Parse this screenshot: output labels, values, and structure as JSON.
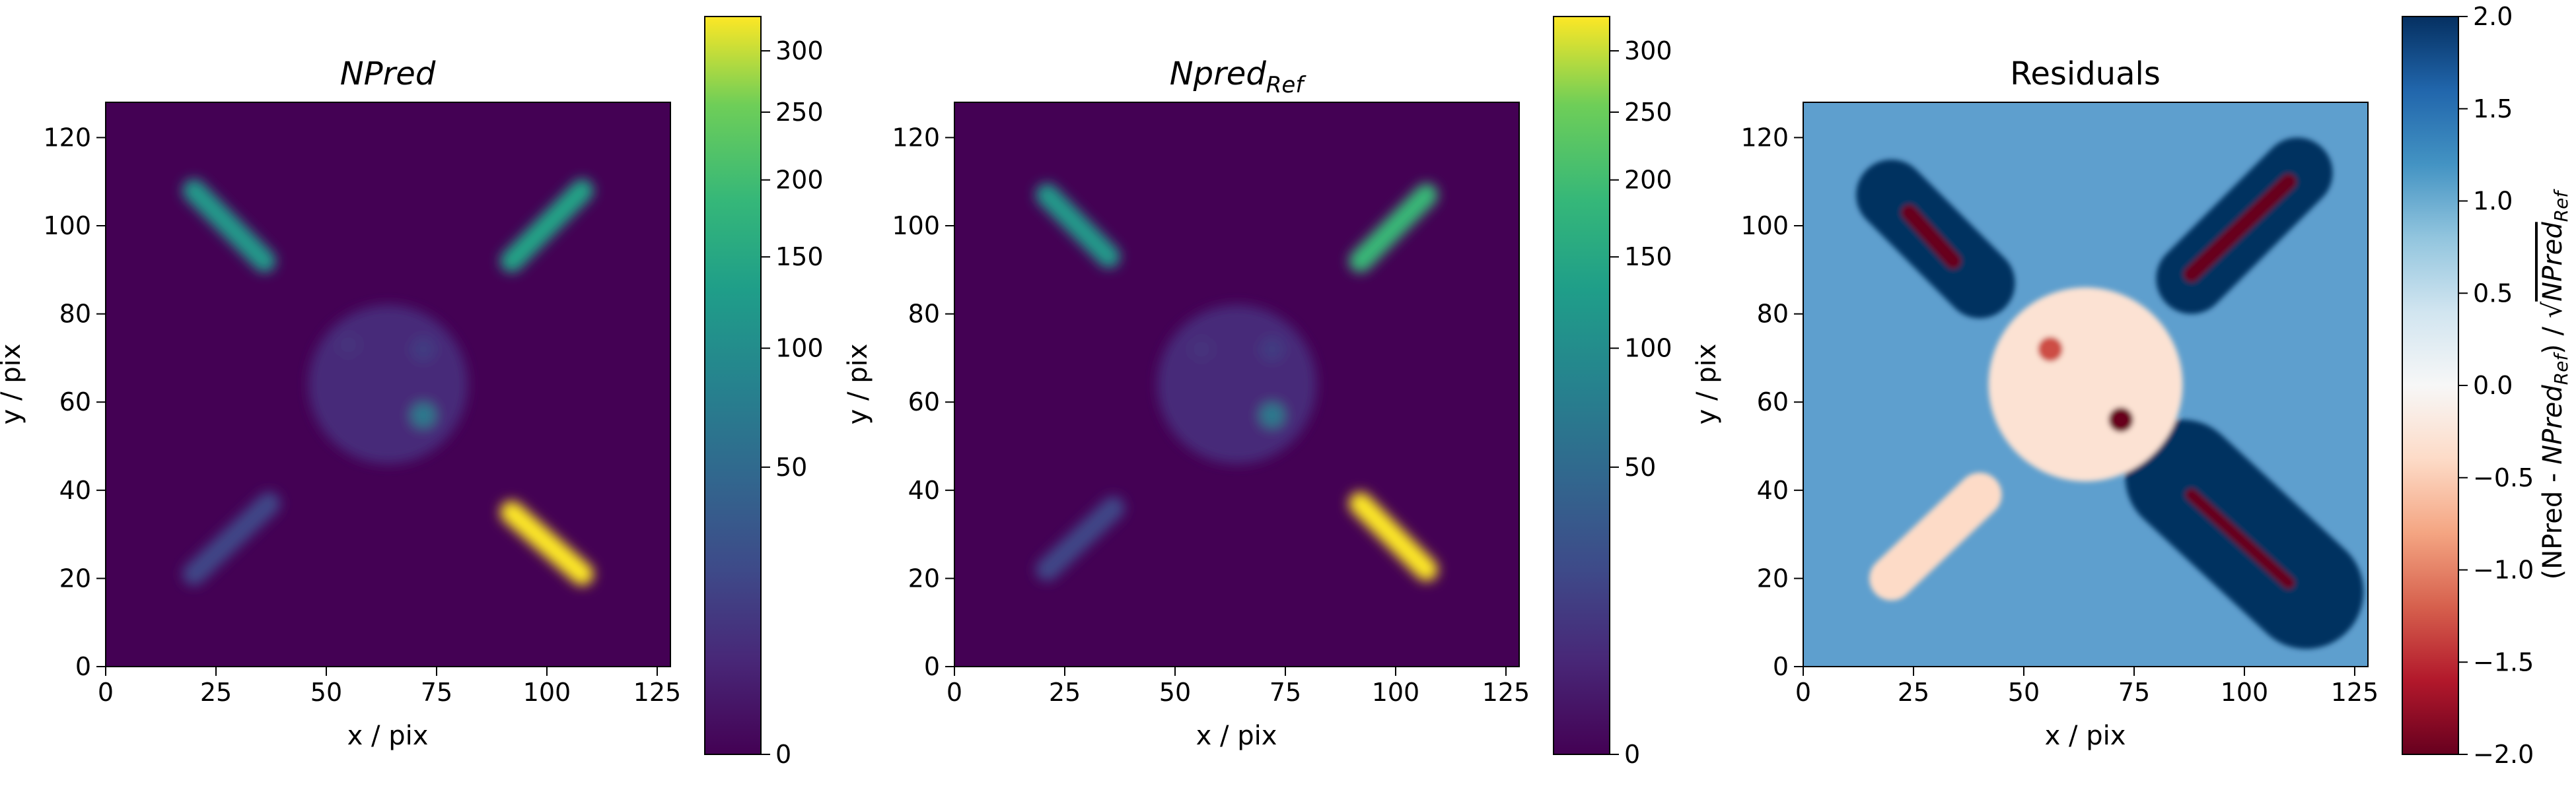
{
  "chart_data": [
    {
      "type": "heatmap",
      "title": "NPred",
      "title_style": "italic",
      "xlabel": "x / pix",
      "ylabel": "y / pix",
      "xlim": [
        0,
        128
      ],
      "ylim": [
        0,
        128
      ],
      "xticks": [
        "0",
        "25",
        "50",
        "75",
        "100",
        "125"
      ],
      "yticks": [
        "0",
        "20",
        "40",
        "60",
        "80",
        "100",
        "120"
      ],
      "colormap": "viridis",
      "colorbar": {
        "scale": "sqrt",
        "range": [
          0,
          330
        ],
        "ticks": [
          "0",
          "50",
          "100",
          "150",
          "200",
          "250",
          "300"
        ]
      },
      "features": [
        {
          "shape": "bar",
          "from": [
            20,
            108
          ],
          "to": [
            36,
            92
          ],
          "value": 120
        },
        {
          "shape": "bar",
          "from": [
            92,
            92
          ],
          "to": [
            108,
            108
          ],
          "value": 140
        },
        {
          "shape": "bar",
          "from": [
            20,
            21
          ],
          "to": [
            37,
            37
          ],
          "value": 18
        },
        {
          "shape": "bar",
          "from": [
            92,
            35
          ],
          "to": [
            108,
            21
          ],
          "value": 330
        },
        {
          "shape": "disk",
          "center": [
            64,
            64
          ],
          "radius": 18,
          "value": 6
        },
        {
          "shape": "spot",
          "center": [
            72,
            57
          ],
          "value": 70
        },
        {
          "shape": "spot",
          "center": [
            72,
            72
          ],
          "value": 12
        },
        {
          "shape": "spot",
          "center": [
            55,
            73
          ],
          "value": 8
        }
      ]
    },
    {
      "type": "heatmap",
      "title": "Npred",
      "title_subscript": "Ref",
      "title_style": "italic",
      "xlabel": "x / pix",
      "ylabel": "y / pix",
      "xlim": [
        0,
        128
      ],
      "ylim": [
        0,
        128
      ],
      "xticks": [
        "0",
        "25",
        "50",
        "75",
        "100",
        "125"
      ],
      "yticks": [
        "0",
        "20",
        "40",
        "60",
        "80",
        "100",
        "120"
      ],
      "colormap": "viridis",
      "colorbar": {
        "scale": "sqrt",
        "range": [
          0,
          330
        ],
        "ticks": [
          "0",
          "50",
          "100",
          "150",
          "200",
          "250",
          "300"
        ]
      },
      "features": [
        {
          "shape": "bar",
          "from": [
            21,
            107
          ],
          "to": [
            35,
            93
          ],
          "value": 120
        },
        {
          "shape": "bar",
          "from": [
            92,
            92
          ],
          "to": [
            107,
            107
          ],
          "value": 190
        },
        {
          "shape": "bar",
          "from": [
            21,
            22
          ],
          "to": [
            36,
            36
          ],
          "value": 18
        },
        {
          "shape": "bar",
          "from": [
            92,
            37
          ],
          "to": [
            107,
            22
          ],
          "value": 330
        },
        {
          "shape": "disk",
          "center": [
            64,
            64
          ],
          "radius": 18,
          "value": 6
        },
        {
          "shape": "spot",
          "center": [
            72,
            57
          ],
          "value": 70
        },
        {
          "shape": "spot",
          "center": [
            72,
            72
          ],
          "value": 12
        },
        {
          "shape": "spot",
          "center": [
            56,
            72
          ],
          "value": 8
        }
      ]
    },
    {
      "type": "heatmap",
      "title": "Residuals",
      "xlabel": "x / pix",
      "ylabel": "y / pix",
      "xlim": [
        0,
        128
      ],
      "ylim": [
        0,
        128
      ],
      "xticks": [
        "0",
        "25",
        "50",
        "75",
        "100",
        "125"
      ],
      "yticks": [
        "0",
        "20",
        "40",
        "60",
        "80",
        "100",
        "120"
      ],
      "colormap": "RdBu",
      "colorbar": {
        "range": [
          -2.0,
          2.0
        ],
        "ticks": [
          "−2.0",
          "−1.5",
          "−1.0",
          "−0.5",
          "0.0",
          "0.5",
          "1.0",
          "1.5",
          "2.0"
        ],
        "label": "(NPred - NPred_Ref) / √NPred_Ref",
        "label_parts": {
          "prefix": "(NPred - ",
          "npred": "NPred",
          "ref": "Ref",
          "mid": ") / √"
        }
      },
      "features": [
        {
          "shape": "bar",
          "from": [
            20,
            107
          ],
          "to": [
            40,
            87
          ],
          "radius": 8,
          "value": 2.0
        },
        {
          "shape": "bar",
          "from": [
            24,
            103
          ],
          "to": [
            34,
            92
          ],
          "radius": 1.8,
          "value": -2.0
        },
        {
          "shape": "bar",
          "from": [
            88,
            88
          ],
          "to": [
            112,
            112
          ],
          "radius": 8,
          "value": 2.0
        },
        {
          "shape": "bar",
          "from": [
            88,
            89
          ],
          "to": [
            110,
            110
          ],
          "radius": 1.8,
          "value": -2.0
        },
        {
          "shape": "bar",
          "from": [
            86,
            43
          ],
          "to": [
            114,
            17
          ],
          "radius": 13,
          "value": 2.0
        },
        {
          "shape": "bar",
          "from": [
            88,
            39
          ],
          "to": [
            110,
            19
          ],
          "radius": 1.4,
          "value": -2.0
        },
        {
          "shape": "bar",
          "from": [
            20,
            20
          ],
          "to": [
            40,
            39
          ],
          "radius": 5,
          "value": -0.4
        },
        {
          "shape": "disk",
          "center": [
            64,
            64
          ],
          "radius": 22,
          "value": -0.3
        },
        {
          "shape": "spot",
          "center": [
            56,
            72
          ],
          "value": -1.3
        },
        {
          "shape": "spot",
          "center": [
            72,
            56
          ],
          "value": -2.0
        }
      ]
    }
  ]
}
